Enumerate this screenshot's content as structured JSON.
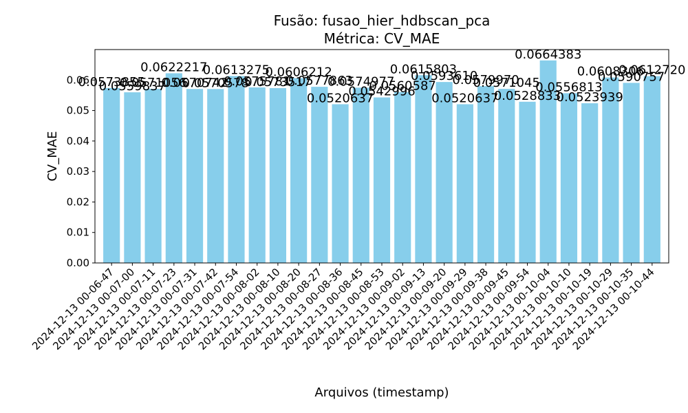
{
  "chart_data": {
    "type": "bar",
    "title": "Fusão: fusao_hier_hdbscan_pca",
    "subtitle": "Métrica: CV_MAE",
    "xlabel": "Arquivos (timestamp)",
    "ylabel": "CV_MAE",
    "ylim": [
      0,
      0.07
    ],
    "yticks": [
      "0.00",
      "0.01",
      "0.02",
      "0.03",
      "0.04",
      "0.05",
      "0.06"
    ],
    "grid": false,
    "bar_color": "#87ceeb",
    "categories": [
      "2024-12-13 00-06-47",
      "2024-12-13 00-07-00",
      "2024-12-13 00-07-11",
      "2024-12-13 00-07-23",
      "2024-12-13 00-07-31",
      "2024-12-13 00-07-42",
      "2024-12-13 00-07-54",
      "2024-12-13 00-08-02",
      "2024-12-13 00-08-10",
      "2024-12-13 00-08-20",
      "2024-12-13 00-08-27",
      "2024-12-13 00-08-36",
      "2024-12-13 00-08-45",
      "2024-12-13 00-08-53",
      "2024-12-13 00-09-02",
      "2024-12-13 00-09-13",
      "2024-12-13 00-09-20",
      "2024-12-13 00-09-29",
      "2024-12-13 00-09-38",
      "2024-12-13 00-09-45",
      "2024-12-13 00-09-54",
      "2024-12-13 00-10-04",
      "2024-12-13 00-10-10",
      "2024-12-13 00-10-19",
      "2024-12-13 00-10-29",
      "2024-12-13 00-10-35",
      "2024-12-13 00-10-44"
    ],
    "values": [
      0.0573855,
      0.0559837,
      0.0571056,
      0.0622217,
      0.0570742,
      0.0570578,
      0.0613275,
      0.0575781,
      0.0573517,
      0.0606212,
      0.0577863,
      0.0520637,
      0.0574977,
      0.0542996,
      0.0560587,
      0.0615803,
      0.059361,
      0.0520637,
      0.057997,
      0.0571045,
      0.0528833,
      0.0664383,
      0.0556813,
      0.0523939,
      0.0608306,
      0.0590757,
      0.061272
    ],
    "data_labels": [
      "0.0573855",
      "0.0559837",
      "0.0571056",
      "0.0622217",
      "0.0570742",
      "0.0570578",
      "0.0613275",
      "0.0575781",
      "0.0573517",
      "0.0606212",
      "0.0577863",
      "0.0520637",
      "0.0574977",
      "0.0542996",
      "0.0560587",
      "0.0615803",
      "0.0593610",
      "0.0520637",
      "0.0579970",
      "0.0571045",
      "0.0528833",
      "0.0664383",
      "0.0556813",
      "0.0523939",
      "0.0608306",
      "0.0590757",
      "0.0612720"
    ]
  }
}
